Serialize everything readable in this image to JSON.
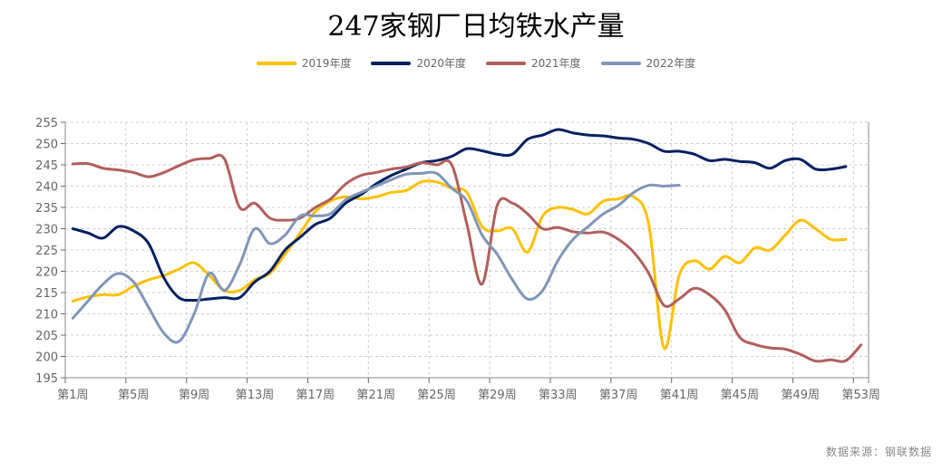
{
  "chart_data": {
    "type": "line",
    "title": "247家钢厂日均铁水产量",
    "source": "数据来源：钢联数据",
    "xlabel": "",
    "ylabel": "",
    "ylim": [
      195,
      255
    ],
    "yticks": [
      195,
      200,
      205,
      210,
      215,
      220,
      225,
      230,
      235,
      240,
      245,
      250,
      255
    ],
    "xrange_weeks": [
      1,
      53
    ],
    "xtick_labels": [
      "第1周",
      "第5周",
      "第9周",
      "第13周",
      "第17周",
      "第21周",
      "第25周",
      "第29周",
      "第33周",
      "第37周",
      "第41周",
      "第45周",
      "第49周",
      "第53周"
    ],
    "grid": true,
    "legend_position": "top-center",
    "series": [
      {
        "name": "2019年度",
        "color": "#ffc000",
        "values": [
          213,
          214,
          214.5,
          214.5,
          216.5,
          218,
          219,
          220.5,
          222,
          219,
          215.5,
          215.5,
          218,
          219.5,
          224,
          229,
          234,
          236.5,
          237.5,
          237,
          237.5,
          238.5,
          239,
          241,
          241,
          239.5,
          238.5,
          230.5,
          229.5,
          230,
          224.5,
          233,
          235,
          234.5,
          233.5,
          236.5,
          237,
          237.5,
          231,
          202,
          219,
          222.5,
          220.5,
          223.5,
          222,
          225.5,
          225,
          228.5,
          232,
          230,
          227.5,
          227.5
        ]
      },
      {
        "name": "2020年度",
        "color": "#002060",
        "values": [
          230,
          229,
          227.8,
          230.5,
          229.5,
          226.5,
          218.5,
          213.8,
          213.2,
          213.5,
          213.8,
          213.8,
          217.5,
          220,
          225,
          228,
          231,
          232.5,
          236,
          238,
          240.5,
          242.5,
          244,
          245.5,
          246,
          247,
          248.8,
          248.3,
          247.5,
          247.5,
          251,
          252,
          253.3,
          252.5,
          252,
          251.8,
          251.3,
          251,
          250,
          248.2,
          248.2,
          247.5,
          246,
          246.3,
          245.8,
          245.5,
          244.2,
          246,
          246.3,
          244,
          244,
          244.6
        ]
      },
      {
        "name": "2021年度",
        "color": "#b0605c",
        "values": [
          245.2,
          245.3,
          244.2,
          243.8,
          243.2,
          242.2,
          243.2,
          244.8,
          246.2,
          246.5,
          246.4,
          235,
          236,
          232.5,
          232,
          232.5,
          235,
          237,
          240.5,
          242.5,
          243.2,
          244,
          244.5,
          245.5,
          245,
          245,
          231,
          217,
          235.5,
          236,
          233.5,
          230,
          230.3,
          229.3,
          229,
          229.2,
          227.5,
          224.5,
          219.5,
          212,
          213.5,
          216,
          214.5,
          211,
          204.5,
          202.8,
          202,
          201.7,
          200.5,
          198.9,
          199.2,
          199,
          202.7
        ]
      },
      {
        "name": "2022年度",
        "color": "#7f96b8",
        "values": [
          209,
          213,
          217,
          219.5,
          217.5,
          211.5,
          205.5,
          203.5,
          210,
          219.5,
          215.5,
          221.5,
          230,
          226.5,
          228.5,
          233,
          233,
          233.5,
          236.8,
          238.5,
          240,
          241.5,
          242.8,
          243,
          243,
          239.5,
          236.5,
          228.5,
          224,
          218,
          213.5,
          215.5,
          222.5,
          227.5,
          230.5,
          233.5,
          235.5,
          238.5,
          240.2,
          240,
          240.2
        ]
      }
    ]
  }
}
